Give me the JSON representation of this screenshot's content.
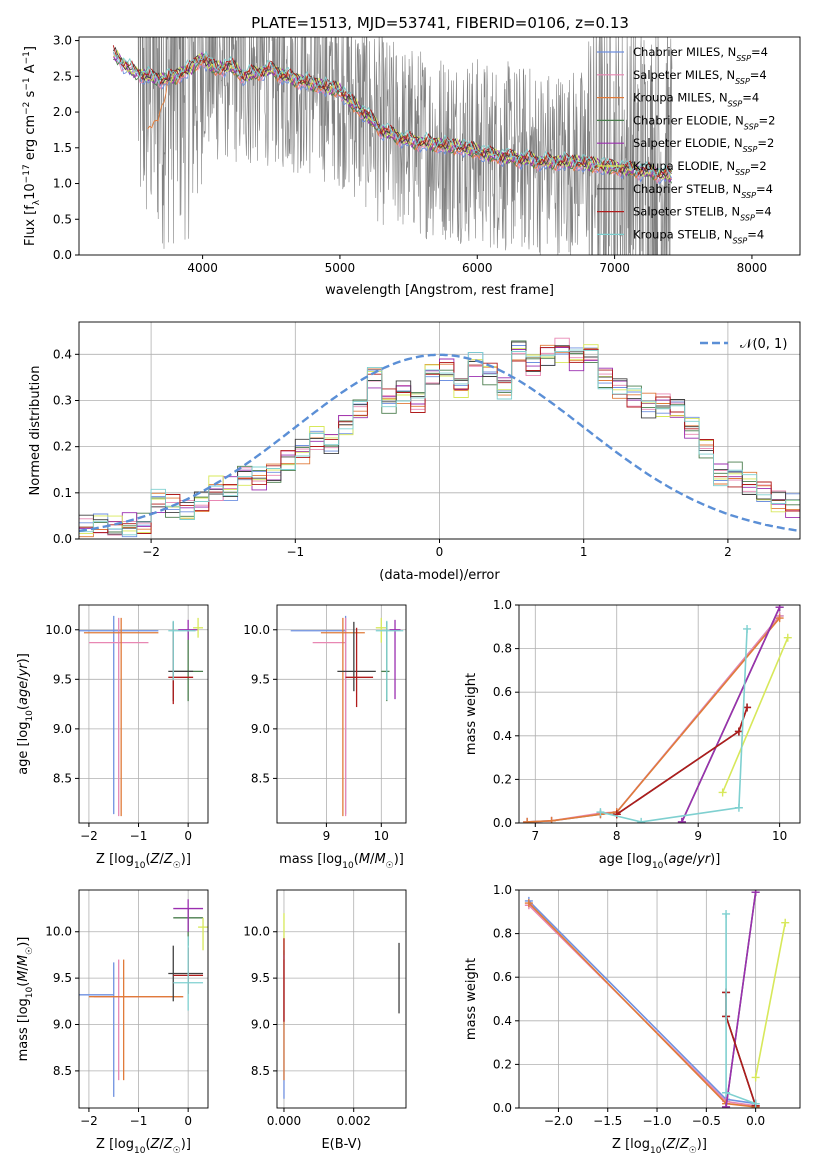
{
  "title": "PLATE=1513, MJD=53741, FIBERID=0106, z=0.13",
  "colors": {
    "Chabrier MILES": "#6f91e0",
    "Salpeter MILES": "#e887b3",
    "Kroupa MILES": "#e07b3a",
    "Chabrier ELODIE": "#4a7d4d",
    "Salpeter ELODIE": "#9b2fb0",
    "Kroupa ELODIE": "#d7e85a",
    "Chabrier STELIB": "#404040",
    "Salpeter STELIB": "#b01c1c",
    "Kroupa STELIB": "#7fd0d0",
    "data": "#808080",
    "normal": "#5b8fd6"
  },
  "chart_data": [
    {
      "id": "spectrum",
      "type": "line",
      "title": "PLATE=1513, MJD=53741, FIBERID=0106, z=0.13",
      "xlabel": "wavelength [Angstrom, rest frame]",
      "ylabel": "Flux [f_λ 10^-17 erg cm^-2 s^-1 A^-1]",
      "xlim": [
        3100,
        8350
      ],
      "ylim": [
        0,
        3.05
      ],
      "xticks": [
        4000,
        5000,
        6000,
        7000,
        8000
      ],
      "yticks": [
        0.0,
        0.5,
        1.0,
        1.5,
        2.0,
        2.5,
        3.0
      ],
      "grid": false,
      "legend_position": "top-right",
      "legend": [
        "Chabrier MILES, N_SSP=4",
        "Salpeter MILES, N_SSP=4",
        "Kroupa MILES, N_SSP=4",
        "Chabrier ELODIE, N_SSP=2",
        "Salpeter ELODIE, N_SSP=2",
        "Kroupa ELODIE, N_SSP=2",
        "Chabrier STELIB, N_SSP=4",
        "Salpeter STELIB, N_SSP=4",
        "Kroupa STELIB, N_SSP=4"
      ],
      "data_series": {
        "name": "data",
        "x_range": [
          3530,
          7420
        ],
        "typical_flux": 1.6,
        "noise_amplitude": 1.5
      },
      "model_continuum": {
        "x": [
          3350,
          3400,
          3500,
          3600,
          3700,
          3800,
          3900,
          4000,
          4100,
          4200,
          4300,
          4400,
          4500,
          4600,
          4700,
          4800,
          4900,
          5000,
          5100,
          5200,
          5300,
          5500,
          5700,
          5900,
          6100,
          6300,
          6500,
          6700,
          6900,
          7100,
          7300,
          7400
        ],
        "y": [
          2.8,
          2.72,
          2.55,
          2.5,
          2.45,
          2.5,
          2.6,
          2.75,
          2.6,
          2.65,
          2.5,
          2.55,
          2.6,
          2.5,
          2.45,
          2.4,
          2.35,
          2.3,
          2.1,
          1.95,
          1.75,
          1.6,
          1.55,
          1.5,
          1.4,
          1.35,
          1.3,
          1.3,
          1.25,
          1.2,
          1.15,
          1.1
        ]
      }
    },
    {
      "id": "residuals",
      "type": "line",
      "xlabel": "(data-model)/error",
      "ylabel": "Normed distribution",
      "xlim": [
        -2.5,
        2.5
      ],
      "ylim": [
        0,
        0.47
      ],
      "xticks": [
        -2,
        -1,
        0,
        1,
        2
      ],
      "yticks": [
        0.0,
        0.1,
        0.2,
        0.3,
        0.4
      ],
      "grid": true,
      "legend_position": "top-right",
      "legend": [
        "𝒩(0, 1)"
      ],
      "bin_width": 0.1,
      "bins_start": -2.5,
      "histogram": [
        0.025,
        0.03,
        0.028,
        0.03,
        0.03,
        0.08,
        0.07,
        0.06,
        0.08,
        0.11,
        0.11,
        0.14,
        0.13,
        0.14,
        0.17,
        0.19,
        0.22,
        0.21,
        0.25,
        0.28,
        0.35,
        0.3,
        0.32,
        0.3,
        0.36,
        0.37,
        0.33,
        0.38,
        0.36,
        0.33,
        0.41,
        0.38,
        0.4,
        0.41,
        0.39,
        0.4,
        0.35,
        0.33,
        0.31,
        0.29,
        0.29,
        0.28,
        0.24,
        0.2,
        0.14,
        0.14,
        0.12,
        0.1,
        0.08,
        0.07,
        0.08,
        0.06,
        0.05,
        0.05,
        0.045,
        0.04,
        0.035,
        0.03,
        0.03,
        0.03
      ]
    },
    {
      "id": "age-vs-Z",
      "type": "scatter",
      "xlabel": "Z [log10(Z/Z☉)]",
      "ylabel": "age  [log10(age/yr)]",
      "xlim": [
        -2.2,
        0.4
      ],
      "ylim": [
        8.05,
        10.25
      ],
      "xticks": [
        -2,
        -1,
        0
      ],
      "yticks": [
        8.5,
        9.0,
        9.5,
        10.0
      ],
      "grid": true,
      "points": [
        {
          "model": "Chabrier MILES",
          "x": -1.5,
          "y": 9.99,
          "xerr": [
            0.9,
            0.9
          ],
          "yerr": [
            1.85,
            0.15
          ]
        },
        {
          "model": "Salpeter MILES",
          "x": -1.4,
          "y": 9.87,
          "xerr": [
            0.6,
            0.6
          ],
          "yerr": [
            1.75,
            0.25
          ]
        },
        {
          "model": "Kroupa MILES",
          "x": -1.35,
          "y": 9.97,
          "xerr": [
            0.75,
            0.75
          ],
          "yerr": [
            1.85,
            0.15
          ]
        },
        {
          "model": "Chabrier ELODIE",
          "x": 0.0,
          "y": 9.58,
          "xerr": [
            0.3,
            0.3
          ],
          "yerr": [
            0.3,
            0.4
          ]
        },
        {
          "model": "Salpeter ELODIE",
          "x": 0.0,
          "y": 10.0,
          "xerr": [
            0.2,
            0.2
          ],
          "yerr": [
            0.1,
            0.1
          ]
        },
        {
          "model": "Kroupa ELODIE",
          "x": 0.2,
          "y": 10.02,
          "xerr": [
            0.1,
            0.1
          ],
          "yerr": [
            0.1,
            0.1
          ]
        },
        {
          "model": "Chabrier STELIB",
          "x": -0.3,
          "y": 9.58,
          "xerr": [
            0.1,
            0.4
          ],
          "yerr": [
            0.3,
            0.5
          ]
        },
        {
          "model": "Salpeter STELIB",
          "x": -0.3,
          "y": 9.52,
          "xerr": [
            0.1,
            0.4
          ],
          "yerr": [
            0.27,
            0.45
          ]
        },
        {
          "model": "Kroupa STELIB",
          "x": -0.3,
          "y": 9.99,
          "xerr": [
            0.1,
            0.45
          ],
          "yerr": [
            0.5,
            0.1
          ]
        }
      ]
    },
    {
      "id": "age-vs-mass",
      "type": "scatter",
      "xlabel": "mass [log10(M/M☉)]",
      "ylabel": "",
      "xlim": [
        8.1,
        10.45
      ],
      "ylim": [
        8.05,
        10.25
      ],
      "xticks": [
        9,
        10
      ],
      "yticks": [
        8.5,
        9.0,
        9.5,
        10.0
      ],
      "grid": true,
      "points": [
        {
          "model": "Chabrier MILES",
          "x": 9.35,
          "y": 9.99,
          "xerr": [
            1.0,
            0.0
          ],
          "yerr": [
            1.85,
            0.15
          ]
        },
        {
          "model": "Salpeter MILES",
          "x": 9.35,
          "y": 9.87,
          "xerr": [
            0.6,
            0.0
          ],
          "yerr": [
            1.75,
            0.25
          ]
        },
        {
          "model": "Kroupa MILES",
          "x": 9.3,
          "y": 9.97,
          "xerr": [
            0.4,
            0.4
          ],
          "yerr": [
            1.85,
            0.15
          ]
        },
        {
          "model": "Chabrier ELODIE",
          "x": 10.1,
          "y": 9.58,
          "xerr": [
            0.1,
            0.05
          ],
          "yerr": [
            0.3,
            0.5
          ]
        },
        {
          "model": "Salpeter ELODIE",
          "x": 10.25,
          "y": 10.0,
          "xerr": [
            0.1,
            0.1
          ],
          "yerr": [
            0.7,
            0.1
          ]
        },
        {
          "model": "Kroupa ELODIE",
          "x": 10.0,
          "y": 10.02,
          "xerr": [
            0.1,
            0.1
          ],
          "yerr": [
            0.15,
            0.1
          ]
        },
        {
          "model": "Chabrier STELIB",
          "x": 9.5,
          "y": 9.58,
          "xerr": [
            0.3,
            0.4
          ],
          "yerr": [
            0.2,
            0.5
          ]
        },
        {
          "model": "Salpeter STELIB",
          "x": 9.55,
          "y": 9.52,
          "xerr": [
            0.2,
            0.3
          ],
          "yerr": [
            0.3,
            0.5
          ]
        },
        {
          "model": "Kroupa STELIB",
          "x": 10.1,
          "y": 9.99,
          "xerr": [
            0.2,
            0.3
          ],
          "yerr": [
            0.7,
            0.1
          ]
        }
      ]
    },
    {
      "id": "weight-vs-age",
      "type": "line",
      "xlabel": "age  [log10(age/yr)]",
      "ylabel": "mass weight",
      "xlim": [
        6.8,
        10.25
      ],
      "ylim": [
        0,
        1.0
      ],
      "xticks": [
        7,
        8,
        9,
        10
      ],
      "yticks": [
        0.0,
        0.2,
        0.4,
        0.6,
        0.8,
        1.0
      ],
      "grid": true,
      "series": [
        {
          "model": "Chabrier MILES",
          "x": [
            6.9,
            7.2,
            7.8,
            8.0,
            10.0
          ],
          "y": [
            0.005,
            0.01,
            0.04,
            0.05,
            0.95
          ]
        },
        {
          "model": "Salpeter MILES",
          "x": [
            6.9,
            7.2,
            7.8,
            8.0,
            10.0
          ],
          "y": [
            0.005,
            0.01,
            0.045,
            0.05,
            0.95
          ]
        },
        {
          "model": "Kroupa MILES",
          "x": [
            6.9,
            7.2,
            7.8,
            8.0,
            10.0
          ],
          "y": [
            0.005,
            0.01,
            0.04,
            0.05,
            0.94
          ]
        },
        {
          "model": "Chabrier ELODIE",
          "x": [
            8.8,
            10.0
          ],
          "y": [
            0.005,
            0.99
          ]
        },
        {
          "model": "Salpeter ELODIE",
          "x": [
            8.8,
            10.0
          ],
          "y": [
            0.005,
            0.99
          ]
        },
        {
          "model": "Kroupa ELODIE",
          "x": [
            9.3,
            10.1
          ],
          "y": [
            0.14,
            0.85
          ]
        },
        {
          "model": "Chabrier STELIB",
          "x": [
            8.0,
            9.5,
            9.6
          ],
          "y": [
            0.04,
            0.42,
            0.53
          ]
        },
        {
          "model": "Salpeter STELIB",
          "x": [
            8.0,
            9.5,
            9.6
          ],
          "y": [
            0.04,
            0.42,
            0.53
          ]
        },
        {
          "model": "Kroupa STELIB",
          "x": [
            7.8,
            8.3,
            9.5,
            9.6
          ],
          "y": [
            0.05,
            0.005,
            0.07,
            0.89
          ]
        }
      ]
    },
    {
      "id": "mass-vs-Z",
      "type": "scatter",
      "xlabel": "Z [log10(Z/Z☉)]",
      "ylabel": "mass [log10(M/M☉)]",
      "xlim": [
        -2.2,
        0.4
      ],
      "ylim": [
        8.1,
        10.45
      ],
      "xticks": [
        -2,
        -1,
        0
      ],
      "yticks": [
        8.5,
        9.0,
        9.5,
        10.0
      ],
      "grid": true,
      "points": [
        {
          "model": "Chabrier MILES",
          "x": -1.5,
          "y": 9.32,
          "xerr": [
            0.8,
            0.0
          ],
          "yerr": [
            1.1,
            0.35
          ]
        },
        {
          "model": "Salpeter MILES",
          "x": -1.4,
          "y": 9.3,
          "xerr": [
            0.5,
            1.3
          ],
          "yerr": [
            0.9,
            0.4
          ]
        },
        {
          "model": "Kroupa MILES",
          "x": -1.3,
          "y": 9.3,
          "xerr": [
            0.7,
            1.2
          ],
          "yerr": [
            0.9,
            0.4
          ]
        },
        {
          "model": "Chabrier ELODIE",
          "x": 0.0,
          "y": 10.15,
          "xerr": [
            0.3,
            0.3
          ],
          "yerr": [
            0.3,
            0.1
          ]
        },
        {
          "model": "Salpeter ELODIE",
          "x": 0.0,
          "y": 10.25,
          "xerr": [
            0.3,
            0.3
          ],
          "yerr": [
            0.25,
            0.1
          ]
        },
        {
          "model": "Kroupa ELODIE",
          "x": 0.3,
          "y": 10.05,
          "xerr": [
            0.1,
            0.1
          ],
          "yerr": [
            0.25,
            0.1
          ]
        },
        {
          "model": "Chabrier STELIB",
          "x": -0.3,
          "y": 9.55,
          "xerr": [
            0.1,
            0.6
          ],
          "yerr": [
            0.3,
            0.3
          ]
        },
        {
          "model": "Salpeter STELIB",
          "x": 0.0,
          "y": 9.53,
          "xerr": [
            0.3,
            0.3
          ],
          "yerr": [
            0.2,
            0.3
          ]
        },
        {
          "model": "Kroupa STELIB",
          "x": 0.0,
          "y": 9.45,
          "xerr": [
            0.3,
            0.3
          ],
          "yerr": [
            0.3,
            0.5
          ]
        }
      ]
    },
    {
      "id": "mass-vs-ebv",
      "type": "scatter",
      "xlabel": "E(B-V)",
      "ylabel": "",
      "xlim": [
        -0.0002,
        0.0035
      ],
      "ylim": [
        8.1,
        10.45
      ],
      "xticks": [
        0.0,
        0.002
      ],
      "yticks": [
        8.5,
        9.0,
        9.5,
        10.0
      ],
      "grid": true,
      "points": [
        {
          "model": "Chabrier MILES",
          "x": 0.0,
          "y": 9.3,
          "xerr": [
            0,
            0
          ],
          "yerr": [
            1.1,
            0.5
          ]
        },
        {
          "model": "Kroupa MILES",
          "x": 0.0,
          "y": 9.3,
          "xerr": [
            0,
            0
          ],
          "yerr": [
            0.9,
            0.4
          ]
        },
        {
          "model": "Kroupa ELODIE",
          "x": 0.0,
          "y": 10.05,
          "xerr": [
            0,
            0
          ],
          "yerr": [
            0.3,
            0.15
          ]
        },
        {
          "model": "Salpeter STELIB",
          "x": 0.0,
          "y": 9.53,
          "xerr": [
            0,
            0
          ],
          "yerr": [
            0.5,
            0.4
          ]
        },
        {
          "model": "Chabrier STELIB",
          "x": 0.0033,
          "y": 9.5,
          "xerr": [
            0,
            0
          ],
          "yerr": [
            0.38,
            0.38
          ]
        }
      ]
    },
    {
      "id": "weight-vs-Z",
      "type": "line",
      "xlabel": "Z [log10(Z/Z☉)]",
      "ylabel": "mass weight",
      "xlim": [
        -2.4,
        0.45
      ],
      "ylim": [
        0,
        1.0
      ],
      "xticks": [
        -2.0,
        -1.5,
        -1.0,
        -0.5,
        0.0
      ],
      "yticks": [
        0.0,
        0.2,
        0.4,
        0.6,
        0.8,
        1.0
      ],
      "grid": true,
      "series": [
        {
          "model": "Chabrier MILES",
          "x": [
            -2.3,
            -0.3,
            0.0
          ],
          "y": [
            0.95,
            0.04,
            0.02
          ]
        },
        {
          "model": "Salpeter MILES",
          "x": [
            -2.3,
            -0.3,
            0.0
          ],
          "y": [
            0.93,
            0.03,
            0.01
          ]
        },
        {
          "model": "Kroupa MILES",
          "x": [
            -2.3,
            -0.3,
            0.0
          ],
          "y": [
            0.94,
            0.02,
            0.005
          ]
        },
        {
          "model": "Chabrier ELODIE",
          "x": [
            -0.3,
            0.0
          ],
          "y": [
            0.005,
            0.99
          ]
        },
        {
          "model": "Salpeter ELODIE",
          "x": [
            -0.3,
            0.0
          ],
          "y": [
            0.005,
            0.99
          ]
        },
        {
          "model": "Kroupa ELODIE",
          "x": [
            0.0,
            0.3
          ],
          "y": [
            0.14,
            0.85
          ]
        },
        {
          "model": "Chabrier STELIB",
          "x": [
            -0.3,
            -0.3,
            0.0
          ],
          "y": [
            0.53,
            0.42,
            0.01
          ]
        },
        {
          "model": "Salpeter STELIB",
          "x": [
            -0.3,
            -0.3,
            0.0
          ],
          "y": [
            0.53,
            0.42,
            0.01
          ]
        },
        {
          "model": "Kroupa STELIB",
          "x": [
            -0.3,
            -0.3,
            0.0
          ],
          "y": [
            0.89,
            0.07,
            0.02
          ]
        }
      ]
    }
  ]
}
